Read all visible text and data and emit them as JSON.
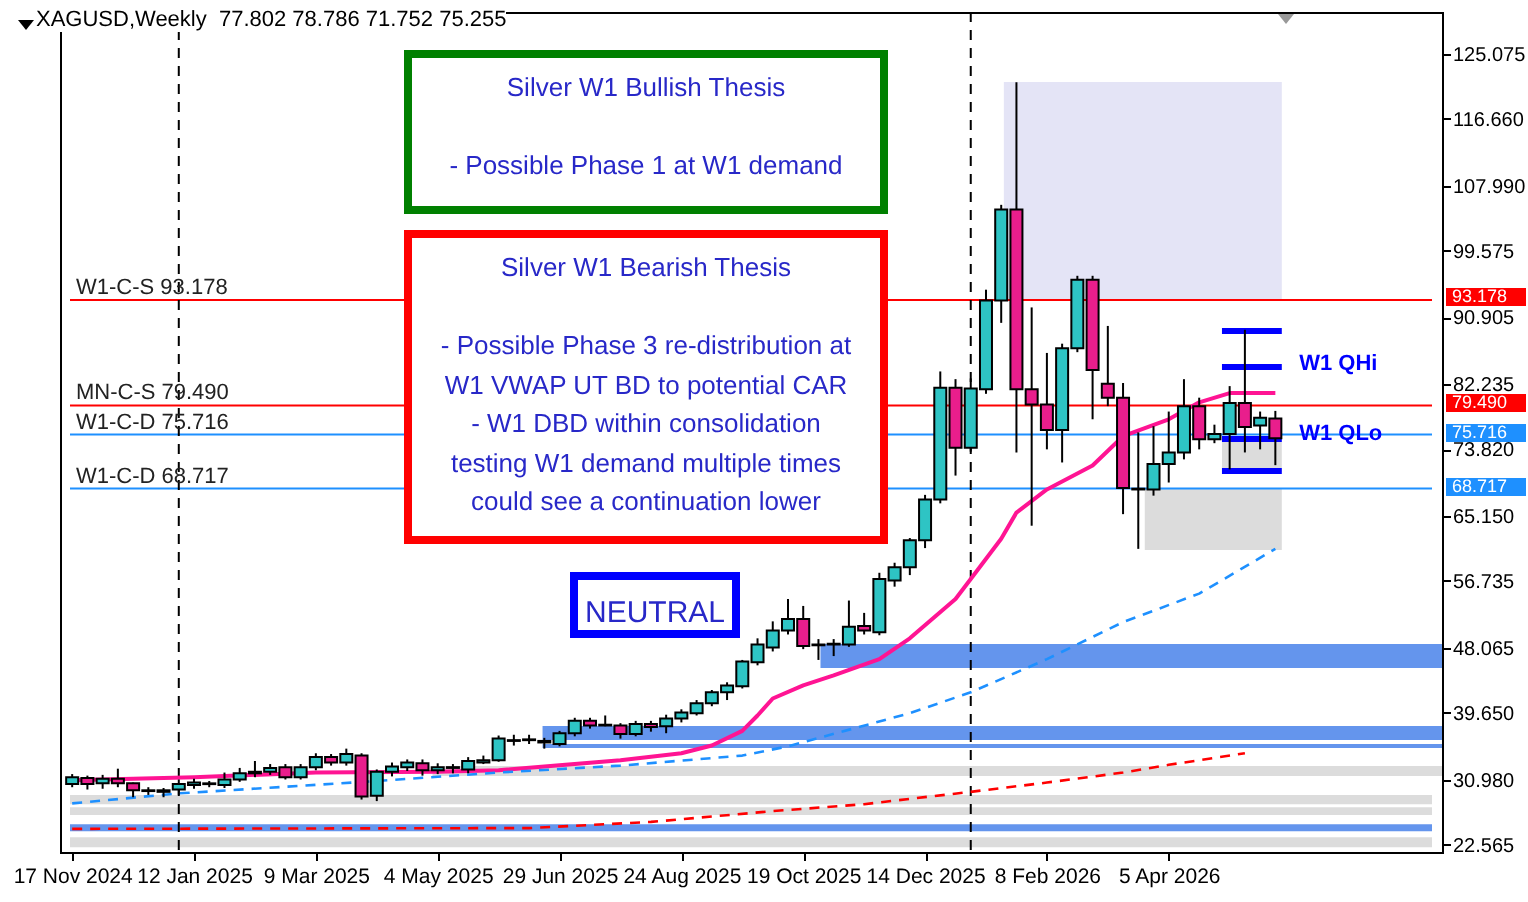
{
  "chart_data": {
    "type": "candlestick",
    "title": "XAGUSD,Weekly  77.802 78.786 71.752 75.255",
    "x": [
      "2024-11-17",
      "2024-11-24",
      "2024-12-01",
      "2024-12-08",
      "2024-12-15",
      "2024-12-22",
      "2024-12-29",
      "2025-01-05",
      "2025-01-12",
      "2025-01-19",
      "2025-01-26",
      "2025-02-02",
      "2025-02-09",
      "2025-02-16",
      "2025-02-23",
      "2025-03-02",
      "2025-03-09",
      "2025-03-16",
      "2025-03-23",
      "2025-03-30",
      "2025-04-06",
      "2025-04-13",
      "2025-04-20",
      "2025-04-27",
      "2025-05-04",
      "2025-05-11",
      "2025-05-18",
      "2025-05-25",
      "2025-06-01",
      "2025-06-08",
      "2025-06-15",
      "2025-06-22",
      "2025-06-29",
      "2025-07-06",
      "2025-07-13",
      "2025-07-20",
      "2025-07-27",
      "2025-08-03",
      "2025-08-10",
      "2025-08-17",
      "2025-08-24",
      "2025-08-31",
      "2025-09-07",
      "2025-09-14",
      "2025-09-21",
      "2025-09-28",
      "2025-10-05",
      "2025-10-12",
      "2025-10-19",
      "2025-10-26",
      "2025-11-02",
      "2025-11-09",
      "2025-11-16",
      "2025-11-23",
      "2025-11-30",
      "2025-12-07",
      "2025-12-14",
      "2025-12-21",
      "2025-12-28",
      "2026-01-04",
      "2026-01-11",
      "2026-01-18",
      "2026-01-25",
      "2026-02-01",
      "2026-02-08",
      "2026-02-15",
      "2026-02-22",
      "2026-03-01",
      "2026-03-08",
      "2026-03-15",
      "2026-03-22",
      "2026-03-29",
      "2026-04-05",
      "2026-04-12",
      "2026-04-19",
      "2026-04-26",
      "2026-05-03",
      "2026-05-10",
      "2026-05-17",
      "2026-05-24"
    ],
    "ohlc": [
      [
        30.4,
        31.7,
        30.0,
        31.3
      ],
      [
        31.2,
        31.5,
        29.7,
        30.4
      ],
      [
        30.5,
        31.6,
        29.8,
        31.1
      ],
      [
        31.1,
        32.4,
        30.0,
        30.5
      ],
      [
        30.5,
        30.6,
        28.7,
        29.6
      ],
      [
        29.5,
        30.0,
        29.0,
        29.6
      ],
      [
        29.6,
        29.9,
        28.7,
        29.4
      ],
      [
        29.7,
        31.0,
        29.0,
        30.4
      ],
      [
        30.3,
        31.1,
        29.8,
        30.6
      ],
      [
        30.4,
        30.8,
        30.0,
        30.5
      ],
      [
        30.3,
        31.9,
        29.9,
        31.0
      ],
      [
        31.0,
        32.5,
        30.7,
        31.8
      ],
      [
        31.8,
        33.4,
        31.3,
        32.0
      ],
      [
        32.0,
        33.0,
        31.6,
        32.5
      ],
      [
        32.6,
        33.0,
        31.0,
        31.3
      ],
      [
        31.3,
        33.0,
        31.0,
        32.6
      ],
      [
        32.6,
        34.4,
        32.2,
        33.9
      ],
      [
        33.9,
        34.3,
        32.8,
        33.2
      ],
      [
        33.2,
        35.0,
        32.8,
        34.3
      ],
      [
        34.1,
        34.4,
        28.4,
        28.8
      ],
      [
        28.9,
        32.3,
        28.2,
        32.0
      ],
      [
        32.0,
        33.2,
        31.4,
        32.7
      ],
      [
        32.6,
        33.6,
        32.1,
        33.2
      ],
      [
        33.1,
        33.6,
        31.5,
        32.2
      ],
      [
        32.2,
        33.1,
        31.7,
        32.6
      ],
      [
        32.5,
        33.0,
        31.8,
        32.6
      ],
      [
        32.3,
        33.9,
        31.8,
        33.4
      ],
      [
        33.2,
        34.1,
        33.0,
        33.5
      ],
      [
        33.5,
        36.7,
        33.3,
        36.3
      ],
      [
        36.0,
        36.8,
        35.4,
        36.1
      ],
      [
        36.1,
        36.8,
        35.6,
        36.2
      ],
      [
        36.0,
        36.4,
        35.0,
        35.8
      ],
      [
        35.6,
        37.3,
        35.3,
        37.0
      ],
      [
        37.0,
        39.0,
        36.6,
        38.6
      ],
      [
        38.6,
        39.0,
        37.6,
        38.0
      ],
      [
        38.0,
        39.3,
        37.9,
        38.1
      ],
      [
        38.0,
        38.3,
        36.3,
        36.9
      ],
      [
        36.9,
        38.6,
        36.6,
        38.2
      ],
      [
        38.2,
        38.6,
        37.2,
        37.8
      ],
      [
        37.9,
        39.4,
        37.0,
        38.9
      ],
      [
        38.9,
        40.1,
        38.4,
        39.7
      ],
      [
        39.6,
        41.3,
        39.3,
        40.9
      ],
      [
        40.9,
        42.6,
        40.5,
        42.3
      ],
      [
        42.3,
        43.6,
        41.3,
        43.2
      ],
      [
        43.1,
        46.5,
        42.8,
        46.3
      ],
      [
        46.2,
        49.3,
        45.8,
        48.5
      ],
      [
        48.1,
        51.5,
        47.6,
        50.3
      ],
      [
        50.3,
        54.4,
        49.8,
        51.8
      ],
      [
        51.8,
        53.5,
        47.9,
        48.3
      ],
      [
        48.4,
        49.2,
        46.5,
        48.5
      ],
      [
        48.6,
        49.2,
        47.0,
        48.5
      ],
      [
        48.5,
        54.2,
        48.2,
        50.8
      ],
      [
        50.9,
        52.6,
        49.8,
        50.3
      ],
      [
        50.1,
        57.8,
        49.7,
        57.0
      ],
      [
        56.8,
        59.1,
        56.0,
        58.5
      ],
      [
        58.5,
        62.3,
        57.5,
        62.0
      ],
      [
        62.0,
        67.9,
        61.0,
        67.3
      ],
      [
        67.3,
        83.9,
        66.8,
        81.8
      ],
      [
        81.8,
        82.9,
        70.4,
        74.0
      ],
      [
        74.0,
        83.0,
        73.5,
        81.7
      ],
      [
        81.6,
        94.5,
        81.0,
        93.1
      ],
      [
        93.1,
        105.5,
        90.2,
        104.9
      ],
      [
        104.9,
        121.4,
        73.4,
        81.6
      ],
      [
        81.6,
        92.2,
        63.9,
        79.6
      ],
      [
        79.6,
        86.3,
        73.8,
        76.3
      ],
      [
        76.3,
        87.5,
        72.1,
        86.9
      ],
      [
        86.9,
        96.3,
        86.4,
        95.8
      ],
      [
        95.8,
        96.3,
        77.7,
        84.1
      ],
      [
        82.3,
        89.8,
        79.4,
        80.5
      ],
      [
        80.5,
        82.4,
        65.4,
        68.8
      ],
      [
        68.7,
        76.0,
        60.9,
        68.6
      ],
      [
        68.6,
        76.8,
        67.8,
        71.9
      ],
      [
        71.9,
        78.7,
        69.5,
        73.4
      ],
      [
        73.4,
        82.9,
        72.5,
        79.4
      ],
      [
        79.4,
        80.5,
        73.8,
        75.1
      ],
      [
        75.1,
        77.0,
        74.6,
        75.8
      ],
      [
        75.8,
        82.0,
        71.2,
        79.8
      ],
      [
        79.8,
        89.3,
        73.4,
        76.7
      ],
      [
        76.9,
        78.7,
        73.8,
        77.9
      ],
      [
        77.802,
        78.786,
        71.752,
        75.255
      ]
    ],
    "colors": [
      "#2ec4c4",
      "#e91e8c",
      "#2ec4c4",
      "#e91e8c",
      "#e91e8c",
      "#2ec4c4",
      "#e91e8c",
      "#2ec4c4",
      "#2ec4c4",
      "#2ec4c4",
      "#2ec4c4",
      "#2ec4c4",
      "#2ec4c4",
      "#2ec4c4",
      "#e91e8c",
      "#2ec4c4",
      "#2ec4c4",
      "#e91e8c",
      "#2ec4c4",
      "#e91e8c",
      "#2ec4c4",
      "#2ec4c4",
      "#2ec4c4",
      "#e91e8c",
      "#2ec4c4",
      "#2ec4c4",
      "#2ec4c4",
      "#2ec4c4",
      "#2ec4c4",
      "#2ec4c4",
      "#2ec4c4",
      "#e91e8c",
      "#2ec4c4",
      "#2ec4c4",
      "#e91e8c",
      "#2ec4c4",
      "#e91e8c",
      "#2ec4c4",
      "#e91e8c",
      "#2ec4c4",
      "#2ec4c4",
      "#2ec4c4",
      "#2ec4c4",
      "#2ec4c4",
      "#2ec4c4",
      "#2ec4c4",
      "#2ec4c4",
      "#2ec4c4",
      "#e91e8c",
      "#2ec4c4",
      "#e91e8c",
      "#2ec4c4",
      "#e91e8c",
      "#2ec4c4",
      "#2ec4c4",
      "#2ec4c4",
      "#2ec4c4",
      "#2ec4c4",
      "#e91e8c",
      "#2ec4c4",
      "#2ec4c4",
      "#2ec4c4",
      "#e91e8c",
      "#e91e8c",
      "#e91e8c",
      "#2ec4c4",
      "#2ec4c4",
      "#e91e8c",
      "#e91e8c",
      "#e91e8c",
      "#e91e8c",
      "#2ec4c4",
      "#2ec4c4",
      "#2ec4c4",
      "#e91e8c",
      "#2ec4c4",
      "#2ec4c4",
      "#e91e8c",
      "#2ec4c4",
      "#e91e8c"
    ],
    "series": [
      {
        "type": "line",
        "color": "#ff1493",
        "line_style": "solid",
        "x": [
          "2024-11-17",
          "2025-01-12",
          "2025-03-09",
          "2025-05-04",
          "2025-06-01",
          "2025-07-27",
          "2025-08-24",
          "2025-09-07",
          "2025-09-21",
          "2025-09-28",
          "2025-10-05",
          "2025-10-19",
          "2025-11-02",
          "2025-11-23",
          "2025-12-07",
          "2025-12-28",
          "2026-01-04",
          "2026-01-18",
          "2026-01-25",
          "2026-02-08",
          "2026-03-01",
          "2026-03-15",
          "2026-04-05",
          "2026-04-19",
          "2026-05-03",
          "2026-05-24"
        ],
        "values": [
          30.9,
          31.3,
          31.9,
          32.0,
          32.2,
          33.5,
          34.4,
          35.4,
          37.3,
          39.3,
          41.5,
          43.2,
          44.5,
          46.6,
          49.3,
          54.4,
          57.0,
          62.2,
          65.6,
          68.6,
          71.7,
          75.5,
          77.7,
          79.9,
          81.1,
          81.1
        ]
      },
      {
        "type": "line",
        "color": "#1e90ff",
        "line_style": "dashed",
        "x": [
          "2024-11-17",
          "2025-01-05",
          "2025-04-06",
          "2025-06-01",
          "2025-07-27",
          "2025-09-21",
          "2025-10-12",
          "2025-12-07",
          "2026-01-04",
          "2026-02-08",
          "2026-03-15",
          "2026-04-19",
          "2026-05-24"
        ],
        "values": [
          27.9,
          29.2,
          30.8,
          31.9,
          32.8,
          34.1,
          35.3,
          39.6,
          42.3,
          46.6,
          51.4,
          55.1,
          60.9
        ]
      },
      {
        "type": "line",
        "color": "#ff0000",
        "line_style": "dashed",
        "x": [
          "2024-11-17",
          "2025-06-15",
          "2025-08-10",
          "2025-10-05",
          "2025-11-16",
          "2026-01-04",
          "2026-02-08",
          "2026-03-15",
          "2026-04-05",
          "2026-05-10"
        ],
        "values": [
          24.6,
          24.7,
          25.5,
          26.9,
          27.8,
          29.4,
          30.6,
          31.9,
          32.9,
          34.4
        ]
      }
    ],
    "xlim": [
      "2024-11-16",
      "2026-08-04"
    ],
    "xticks": [
      {
        "value": "2024-11-17",
        "label": "17 Nov 2024"
      },
      {
        "value": "2025-01-12",
        "label": "12 Jan 2025"
      },
      {
        "value": "2025-03-09",
        "label": "9 Mar 2025"
      },
      {
        "value": "2025-05-04",
        "label": "4 May 2025"
      },
      {
        "value": "2025-06-29",
        "label": "29 Jun 2025"
      },
      {
        "value": "2025-08-24",
        "label": "24 Aug 2025"
      },
      {
        "value": "2025-10-19",
        "label": "19 Oct 2025"
      },
      {
        "value": "2025-12-14",
        "label": "14 Dec 2025"
      },
      {
        "value": "2026-02-08",
        "label": "8 Feb 2026"
      },
      {
        "value": "2026-04-05",
        "label": "5 Apr 2026"
      }
    ],
    "ylim": [
      21.6,
      130.5
    ],
    "yticks": [
      125.075,
      {
        "value": 116.66,
        "label": "116.660"
      },
      {
        "value": 107.99,
        "label": "107.990"
      },
      99.575,
      90.905,
      82.235,
      {
        "value": 73.82,
        "label": "73.820"
      },
      {
        "value": 65.15,
        "label": "65.150"
      },
      56.735,
      48.065,
      {
        "value": 39.65,
        "label": "39.650"
      },
      {
        "value": 30.98,
        "label": "30.980"
      },
      22.565
    ],
    "bands": [
      {
        "axis": "y",
        "from": 27.8,
        "to": 29.0,
        "color": "#dcdcdc"
      },
      {
        "axis": "y",
        "from": 26.4,
        "to": 27.4,
        "color": "#dcdcdc"
      },
      {
        "axis": "y",
        "from": 24.3,
        "to": 25.2,
        "color": "#6495ed"
      },
      {
        "axis": "y",
        "from": 22.2,
        "to": 23.5,
        "color": "#dcdcdc"
      }
    ],
    "ref_lines": [
      {
        "axis": "y",
        "value": 93.178,
        "label": "93.178",
        "color": "#ff0000"
      },
      {
        "axis": "y",
        "value": 79.49,
        "label": "79.490",
        "color": "#ff0000"
      },
      {
        "axis": "y",
        "value": 75.716,
        "label": "75.716",
        "color": "#1e90ff"
      },
      {
        "axis": "y",
        "value": 68.717,
        "label": "68.717",
        "color": "#1e90ff"
      },
      {
        "axis": "x",
        "value": "2025-01-05",
        "color": "#000000",
        "line_style": "dashed"
      },
      {
        "axis": "x",
        "value": "2026-01-04",
        "color": "#000000",
        "line_style": "dashed"
      }
    ],
    "annotations": [
      "Silver W1 Bullish Thesis\n\n- Possible Phase 1 at W1 demand",
      "Silver W1 Bearish Thesis\n\n- Possible Phase 3 re-distribution at\nW1 VWAP UT BD to potential CAR\n- W1 DBD within consolidation\ntesting W1 demand multiple times\ncould see a continuation lower",
      "NEUTRAL",
      "W1 QHi",
      "W1 QLo",
      {
        "text": "W1-C-S 93.178",
        "y": 93.178
      },
      {
        "text": "MN-C-S 79.490",
        "y": 79.49
      },
      {
        "text": "W1-C-D 75.716",
        "y": 75.716
      },
      {
        "text": "W1-C-D 68.717",
        "y": 68.717
      }
    ]
  }
}
